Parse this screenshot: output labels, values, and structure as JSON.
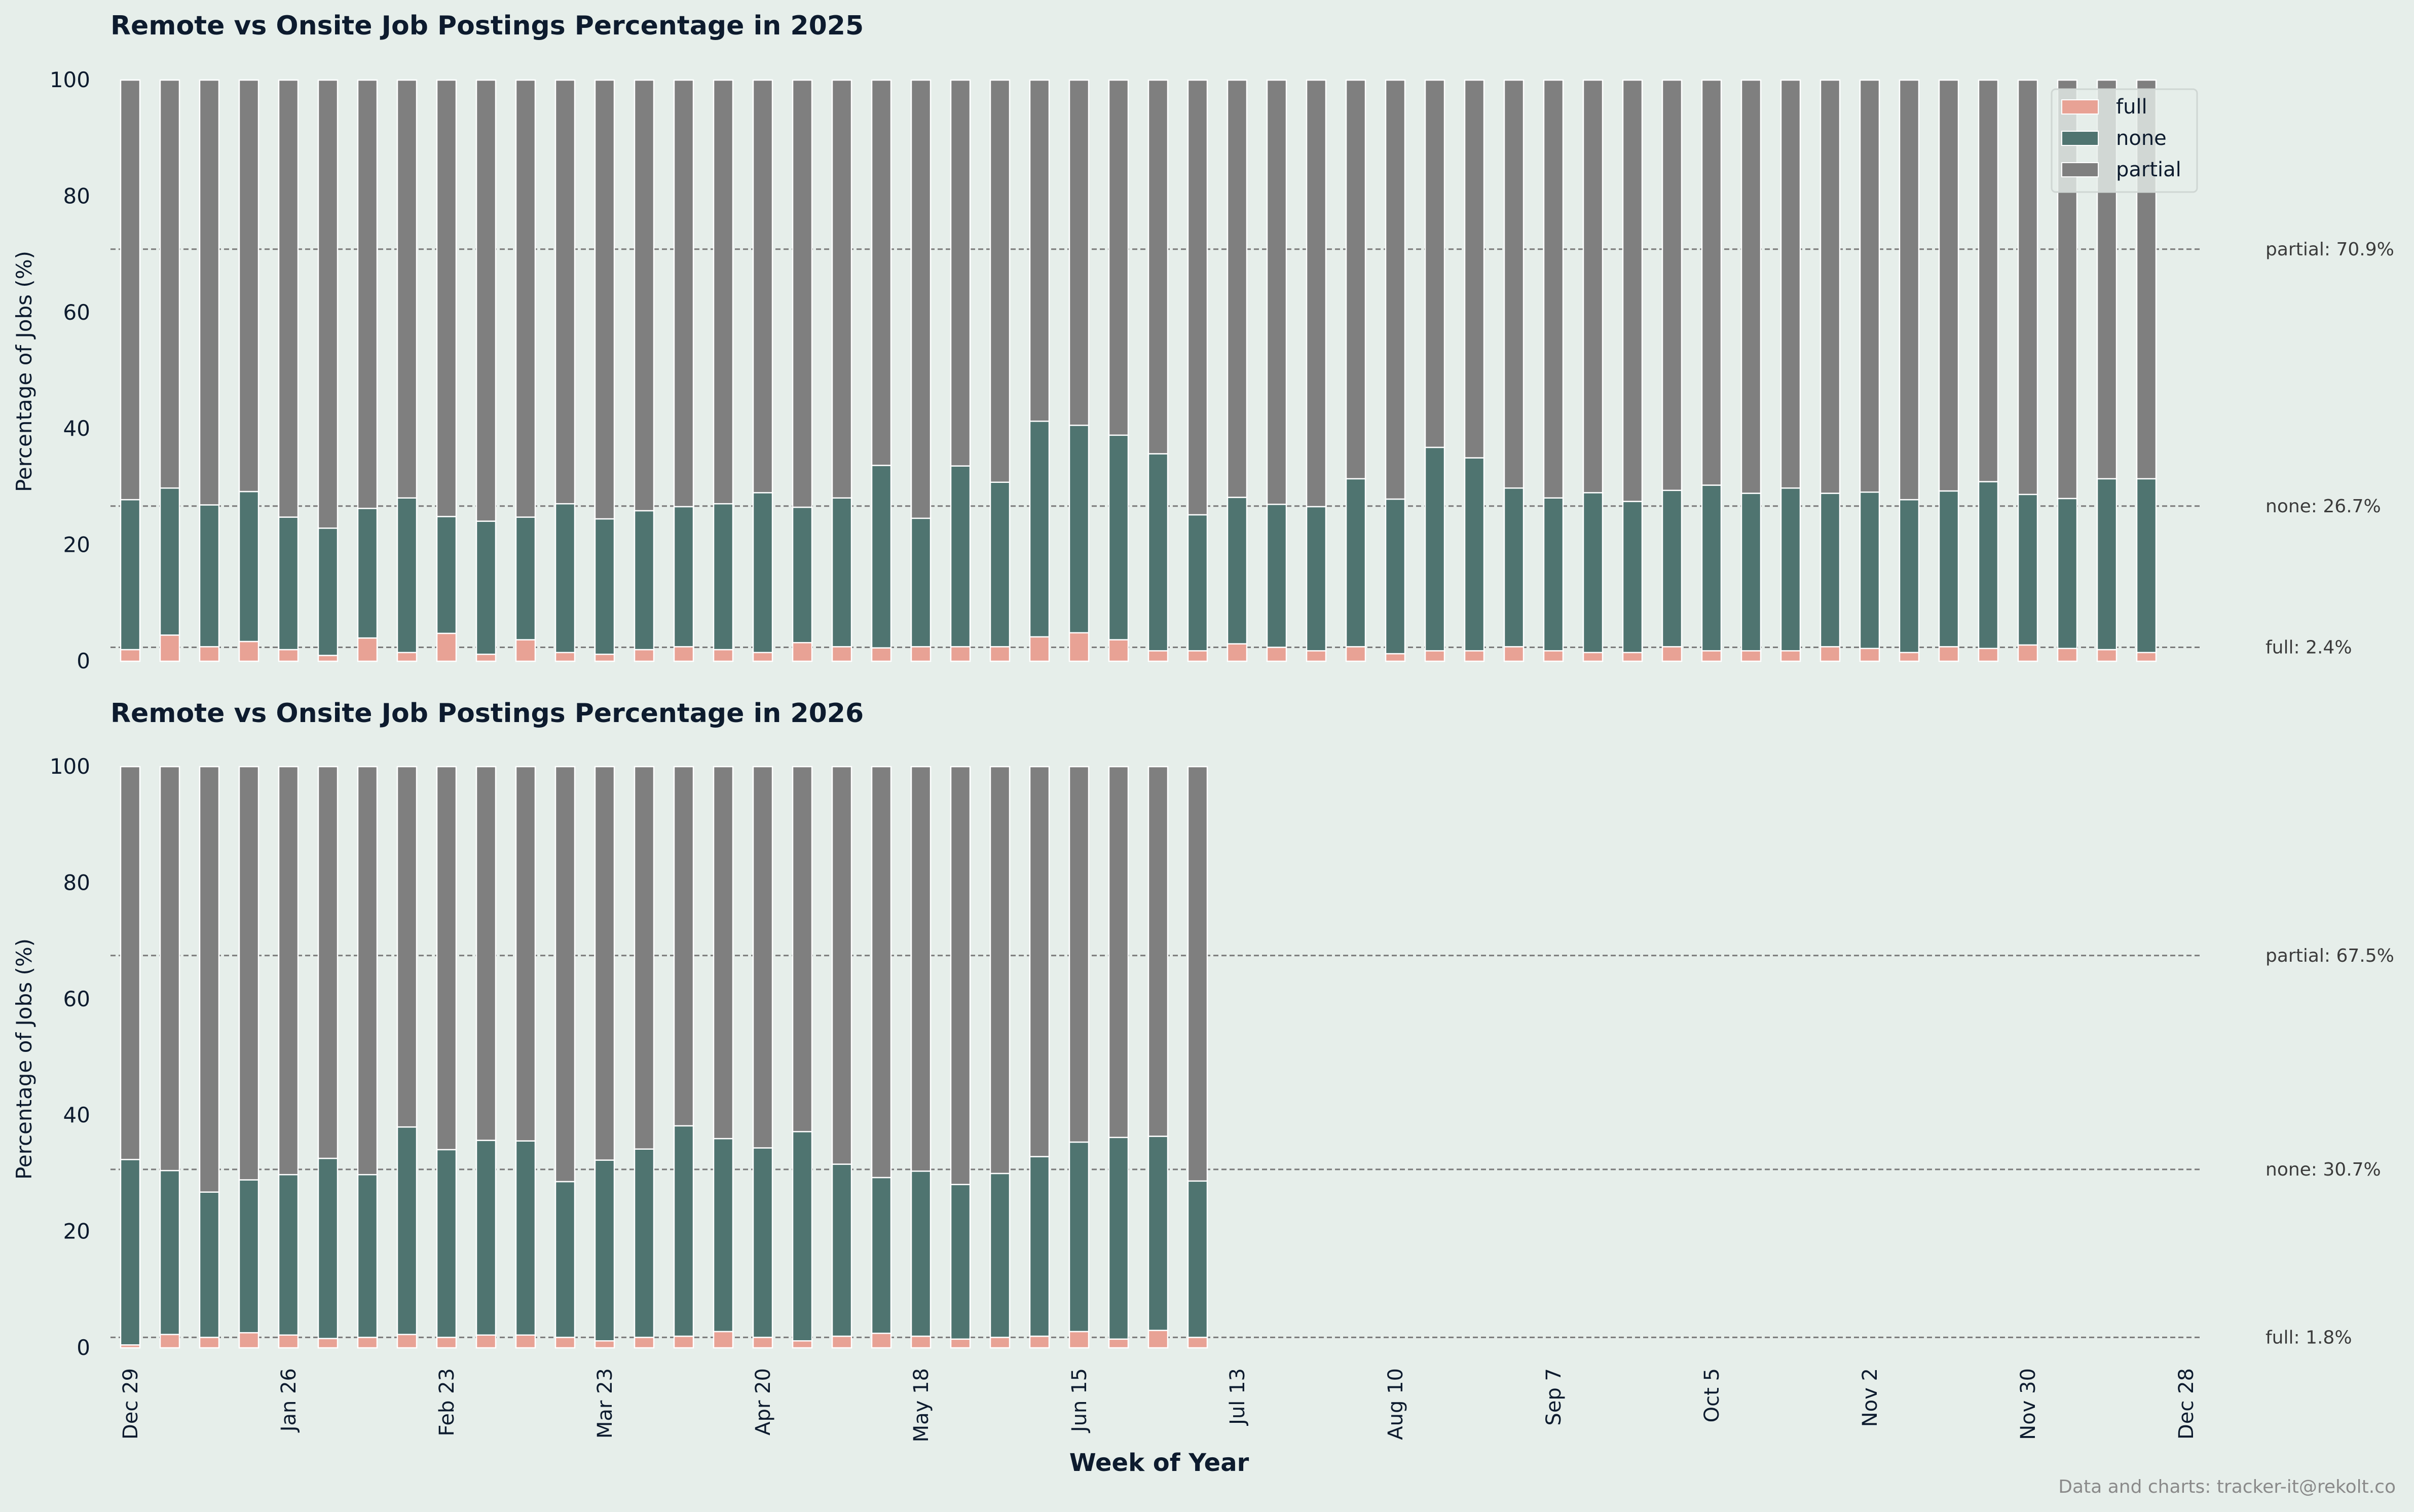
{
  "chart_data": [
    {
      "type": "bar",
      "stacked": true,
      "title": "Remote vs Onsite Job Postings Percentage in 2025",
      "xlabel": "",
      "ylabel": "Percentage of Jobs (%)",
      "ylim": [
        0,
        100
      ],
      "yticks": [
        "0",
        "20",
        "40",
        "60",
        "80",
        "100"
      ],
      "series": [
        {
          "name": "full",
          "color": "#e8a295",
          "values": [
            2.0,
            4.5,
            2.5,
            3.4,
            2.0,
            1.0,
            4.0,
            1.5,
            4.8,
            1.2,
            3.7,
            1.5,
            1.2,
            2.0,
            2.5,
            2.0,
            1.5,
            3.2,
            2.5,
            2.3,
            2.5,
            2.5,
            2.5,
            4.2,
            4.9,
            3.7,
            1.8,
            1.8,
            3.0,
            2.4,
            1.8,
            2.5,
            1.3,
            1.8,
            1.8,
            2.5,
            1.8,
            1.5,
            1.5,
            2.5,
            1.8,
            1.8,
            1.8,
            2.5,
            2.2,
            1.5,
            2.5,
            2.2,
            2.8,
            2.2,
            2.0,
            1.5
          ]
        },
        {
          "name": "none",
          "color": "#4f7470",
          "values": [
            25.8,
            25.3,
            24.4,
            25.8,
            22.8,
            21.9,
            22.3,
            26.6,
            20.1,
            22.9,
            21.1,
            25.6,
            23.3,
            23.9,
            24.1,
            25.1,
            27.5,
            23.3,
            25.6,
            31.4,
            22.1,
            31.1,
            28.3,
            37.1,
            35.7,
            35.2,
            33.9,
            23.4,
            25.2,
            24.6,
            24.8,
            28.9,
            26.6,
            35.0,
            33.2,
            27.3,
            26.3,
            27.5,
            26.0,
            26.9,
            28.5,
            27.1,
            28.0,
            26.4,
            26.9,
            26.3,
            26.8,
            28.7,
            25.9,
            25.8,
            29.4,
            29.9
          ]
        },
        {
          "name": "partial",
          "color": "#7f7f7f",
          "values": [
            72.2,
            70.2,
            73.1,
            70.8,
            75.2,
            77.1,
            73.7,
            71.9,
            75.1,
            75.9,
            75.2,
            72.9,
            75.5,
            74.1,
            73.4,
            72.9,
            71.0,
            73.5,
            71.9,
            66.3,
            75.4,
            66.4,
            69.2,
            58.7,
            59.4,
            61.1,
            64.3,
            74.8,
            71.8,
            73.0,
            73.4,
            68.6,
            72.1,
            63.2,
            65.0,
            70.2,
            71.9,
            71.0,
            72.5,
            70.6,
            69.7,
            71.1,
            70.2,
            71.1,
            70.9,
            72.2,
            70.7,
            69.1,
            71.3,
            72.0,
            68.6,
            68.6
          ]
        }
      ],
      "annotations": [
        {
          "label": "partial: 70.9%",
          "value": 70.9
        },
        {
          "label": "none: 26.7%",
          "value": 26.7
        },
        {
          "label": "full: 2.4%",
          "value": 2.4
        }
      ],
      "legend": {
        "placement": "top-right",
        "entries": [
          "full",
          "none",
          "partial"
        ]
      }
    },
    {
      "type": "bar",
      "stacked": true,
      "title": "Remote vs Onsite Job Postings Percentage in 2026",
      "xlabel": "Week of Year",
      "ylabel": "Percentage of Jobs (%)",
      "ylim": [
        0,
        100
      ],
      "yticks": [
        "0",
        "20",
        "40",
        "60",
        "80",
        "100"
      ],
      "x_tick_labels": [
        "Dec 29",
        "Jan 26",
        "Feb 23",
        "Mar 23",
        "Apr 20",
        "May 18",
        "Jun 15",
        "Jul 13",
        "Aug 10",
        "Sep 7",
        "Oct 5",
        "Nov 2",
        "Nov 30",
        "Dec 28"
      ],
      "series": [
        {
          "name": "full",
          "color": "#e8a295",
          "values": [
            0.5,
            2.3,
            1.8,
            2.6,
            2.2,
            1.6,
            1.8,
            2.3,
            1.8,
            2.2,
            2.2,
            1.8,
            1.2,
            1.8,
            2.0,
            2.8,
            1.8,
            1.2,
            2.0,
            2.5,
            2.0,
            1.5,
            1.8,
            2.0,
            2.8,
            1.5,
            3.0,
            1.8
          ]
        },
        {
          "name": "none",
          "color": "#4f7470",
          "values": [
            31.9,
            28.2,
            25.0,
            26.3,
            27.6,
            31.0,
            28.0,
            35.7,
            32.3,
            33.5,
            33.4,
            26.8,
            31.1,
            32.4,
            36.2,
            33.2,
            32.6,
            36.0,
            29.6,
            26.8,
            28.4,
            26.6,
            28.2,
            30.9,
            32.6,
            34.7,
            33.4,
            26.9
          ]
        },
        {
          "name": "partial",
          "color": "#7f7f7f",
          "values": [
            67.6,
            69.5,
            73.2,
            71.1,
            70.2,
            67.4,
            70.2,
            62.0,
            65.9,
            64.3,
            64.4,
            71.4,
            67.7,
            65.8,
            61.8,
            64.0,
            65.6,
            62.8,
            68.4,
            70.7,
            69.6,
            71.9,
            70.0,
            67.1,
            64.6,
            63.8,
            63.6,
            71.3
          ]
        }
      ],
      "annotations": [
        {
          "label": "partial: 67.5%",
          "value": 67.5
        },
        {
          "label": "none: 30.7%",
          "value": 30.7
        },
        {
          "label": "full: 1.8%",
          "value": 1.8
        }
      ]
    }
  ],
  "footer": "Data and charts: tracker-it@rekolt.co",
  "colors": {
    "background": "#e6eeea",
    "title": "#0d1b2e",
    "reference_line": "#7a7a7a"
  }
}
